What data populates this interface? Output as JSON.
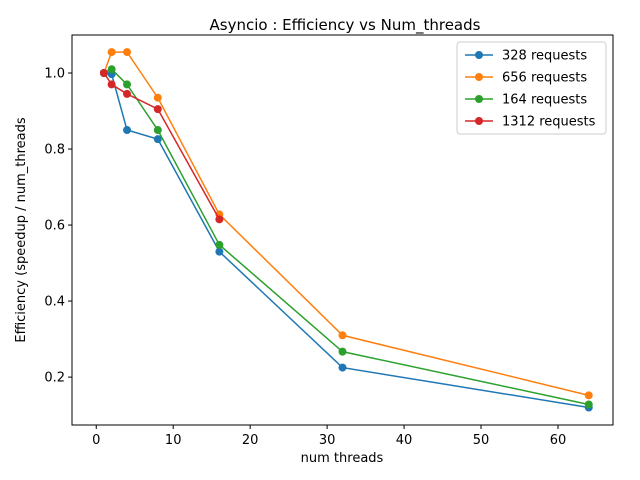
{
  "chart_data": {
    "type": "line",
    "title": "Asyncio : Efficiency vs Num_threads",
    "xlabel": "num threads",
    "ylabel": "Efficiency (speedup / num_threads",
    "xlim": [
      -3.15,
      67.15
    ],
    "ylim": [
      0.074,
      1.1
    ],
    "xticks": [
      0,
      10,
      20,
      30,
      40,
      50,
      60
    ],
    "yticks": [
      0.2,
      0.4,
      0.6,
      0.8,
      1.0
    ],
    "ytick_labels": [
      "0.2",
      "0.4",
      "0.6",
      "0.8",
      "1.0"
    ],
    "grid": false,
    "legend_position": "top-right",
    "series": [
      {
        "name": "328 requests",
        "color": "#1f77b4",
        "x": [
          1,
          2,
          4,
          8,
          16,
          32,
          64
        ],
        "y": [
          1.0,
          0.997,
          0.85,
          0.826,
          0.53,
          0.225,
          0.12
        ]
      },
      {
        "name": "656 requests",
        "color": "#ff7f0e",
        "x": [
          1,
          2,
          4,
          8,
          16,
          32,
          64
        ],
        "y": [
          1.0,
          1.055,
          1.055,
          0.935,
          0.628,
          0.31,
          0.152
        ]
      },
      {
        "name": "164 requests",
        "color": "#2ca02c",
        "x": [
          1,
          2,
          4,
          8,
          16,
          32,
          64
        ],
        "y": [
          1.0,
          1.01,
          0.97,
          0.85,
          0.548,
          0.267,
          0.128
        ]
      },
      {
        "name": "1312 requests",
        "color": "#d62728",
        "x": [
          1,
          2,
          4,
          8,
          16
        ],
        "y": [
          1.0,
          0.97,
          0.945,
          0.905,
          0.615
        ]
      }
    ]
  }
}
